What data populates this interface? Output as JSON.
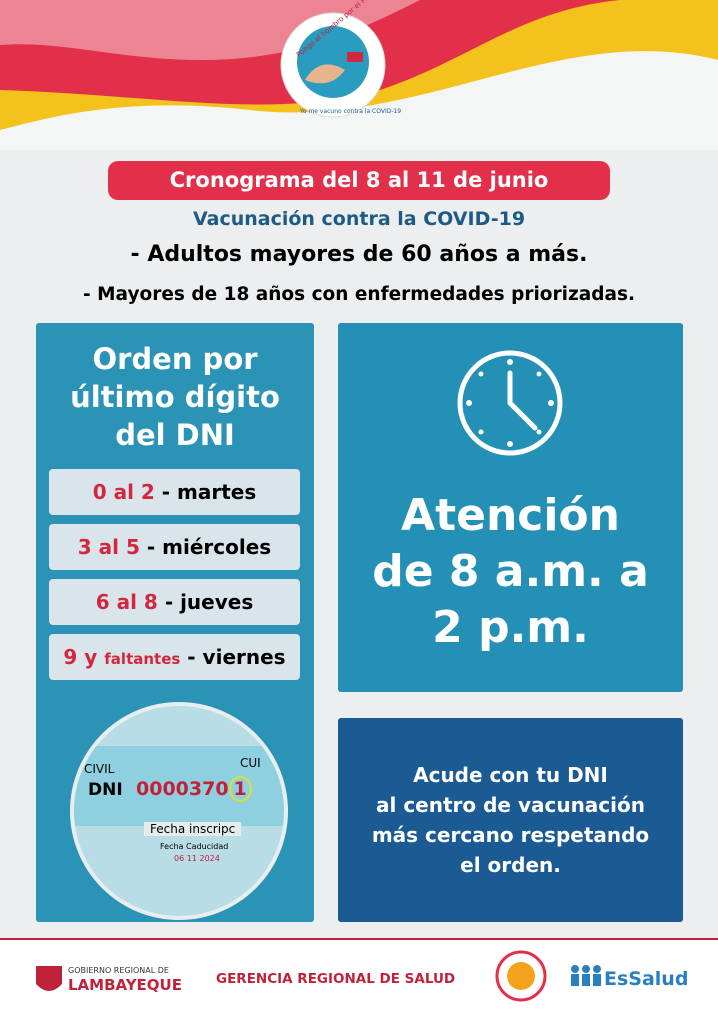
{
  "badge": {
    "top": "Pongo el hombro por el Perú",
    "bottom": "Yo me vacuno contra la COVID-19"
  },
  "banner": "Cronograma del 8 al 11 de junio",
  "subtitle": "Vacunación contra la COVID-19",
  "groups": [
    "- Adultos mayores de 60 años a más.",
    "- Mayores de 18 años con enfermedades priorizadas."
  ],
  "order": {
    "title": [
      "Orden por",
      "último dígito",
      "del DNI"
    ],
    "rows": [
      {
        "digits": "0 al 2",
        "day": "- martes"
      },
      {
        "digits": "3 al 5",
        "day": "- miércoles"
      },
      {
        "digits": "6 al 8",
        "day": "- jueves"
      },
      {
        "digits": "9 y",
        "extra": "faltantes",
        "day": "- viernes"
      }
    ],
    "dni_card": {
      "civil": "CIVIL",
      "cui": "CUI",
      "dni": "DNI",
      "number": "0000370",
      "last": "1",
      "inscription": "Fecha inscripc",
      "expiry": "Fecha Caducidad",
      "date": "06 11 2024"
    }
  },
  "hours": [
    "Atención",
    "de 8 a.m. a",
    "2 p.m."
  ],
  "instruction": [
    "Acude con tu DNI",
    "al centro de vacunación",
    "más cercano respetando",
    "el orden."
  ],
  "footer": {
    "gov": [
      "GOBIERNO REGIONAL DE",
      "LAMBAYEQUE"
    ],
    "health": "GERENCIA REGIONAL DE SALUD",
    "essalud": "EsSalud"
  }
}
